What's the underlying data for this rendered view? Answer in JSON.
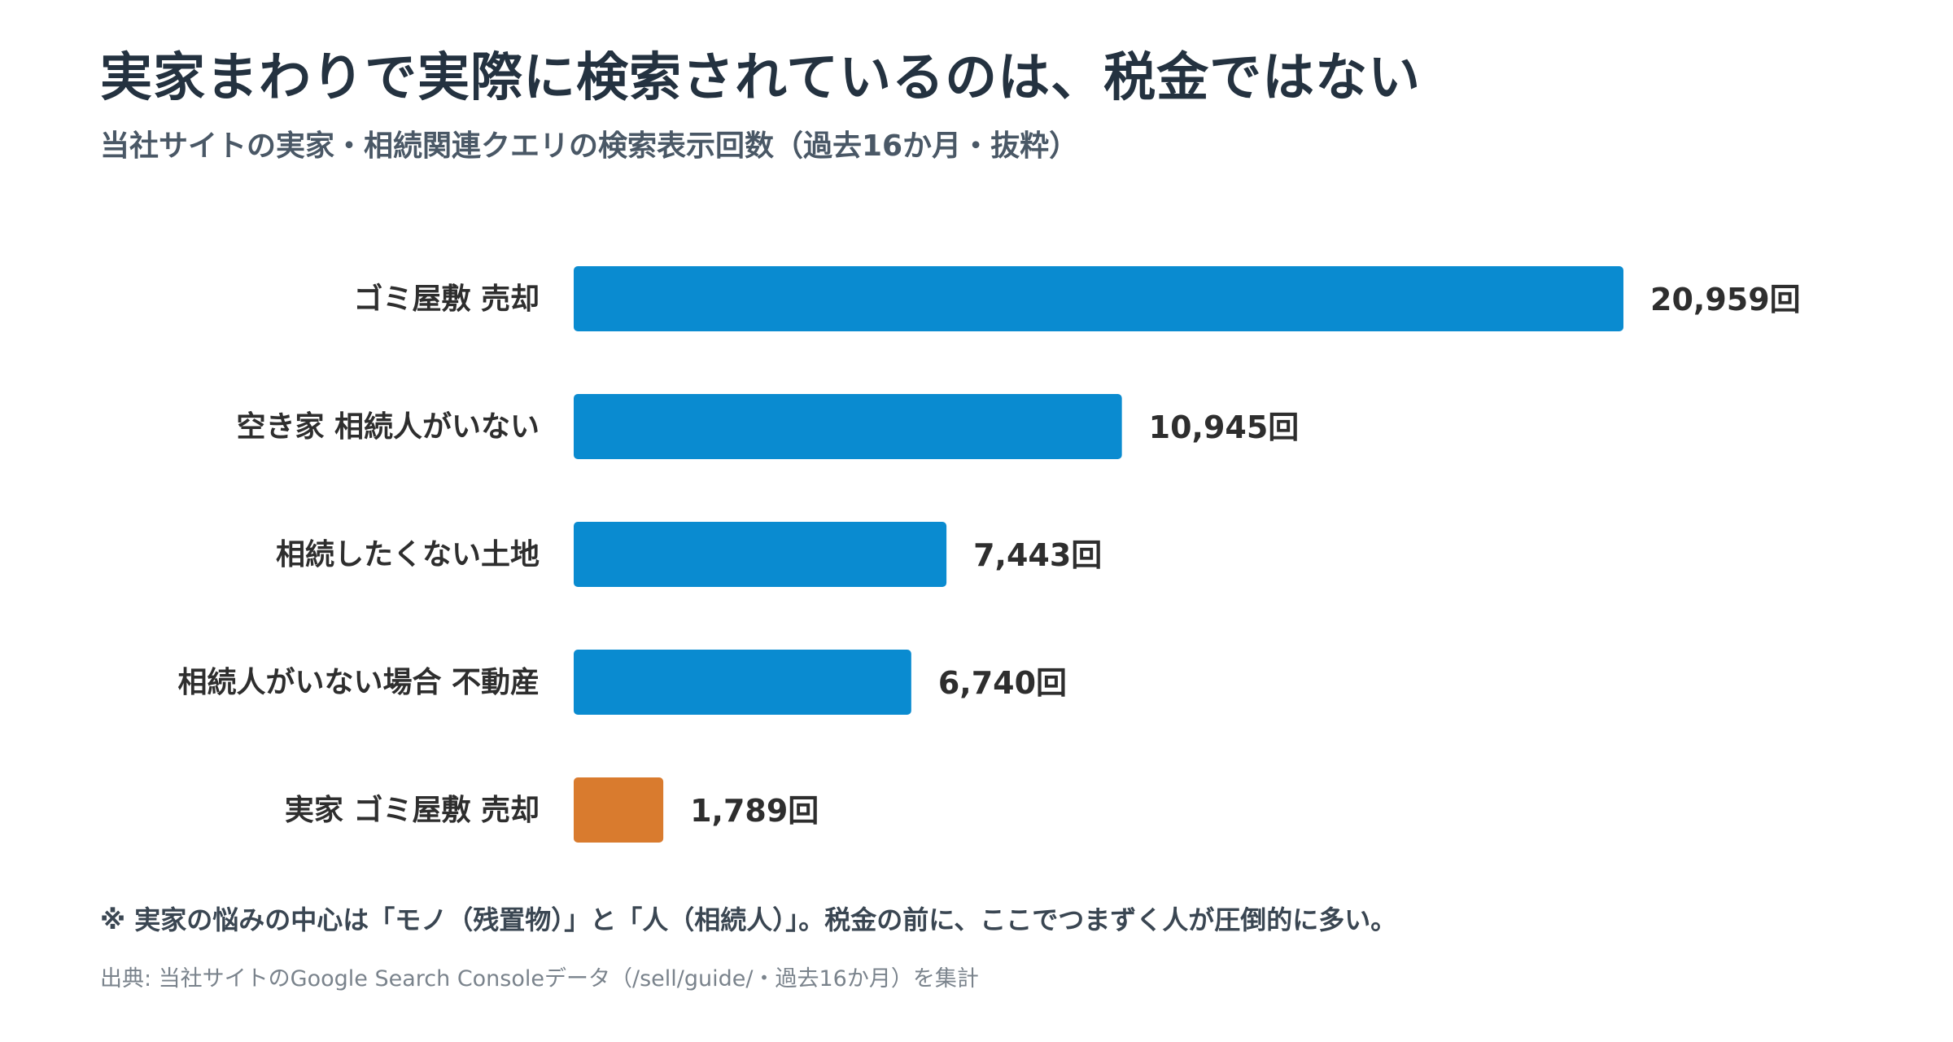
{
  "header": {
    "title": "実家まわりで実際に検索されているのは、税金ではない",
    "subtitle": "当社サイトの実家・相続関連クエリの検索表示回数（過去16か月・抜粋）"
  },
  "chart_data": {
    "type": "bar",
    "orientation": "horizontal",
    "categories": [
      "ゴミ屋敷 売却",
      "空き家 相続人がいない",
      "相続したくない土地",
      "相続人がいない場合 不動産",
      "実家 ゴミ屋敷 売却"
    ],
    "values": [
      20959,
      10945,
      7443,
      6740,
      1789
    ],
    "value_labels": [
      "20,959回",
      "10,945回",
      "7,443回",
      "6,740回",
      "1,789回"
    ],
    "colors": [
      "#0a8bd0",
      "#0a8bd0",
      "#0a8bd0",
      "#0a8bd0",
      "#d97b2e"
    ],
    "value_unit": "回",
    "grid": false,
    "legend": "none",
    "xlim": [
      0,
      20959
    ]
  },
  "footer": {
    "note": "※ 実家の悩みの中心は「モノ（残置物）」と「人（相続人）」。税金の前に、ここでつまずく人が圧倒的に多い。",
    "source": "出典: 当社サイトのGoogle Search Consoleデータ（/sell/guide/・過去16か月）を集計"
  }
}
